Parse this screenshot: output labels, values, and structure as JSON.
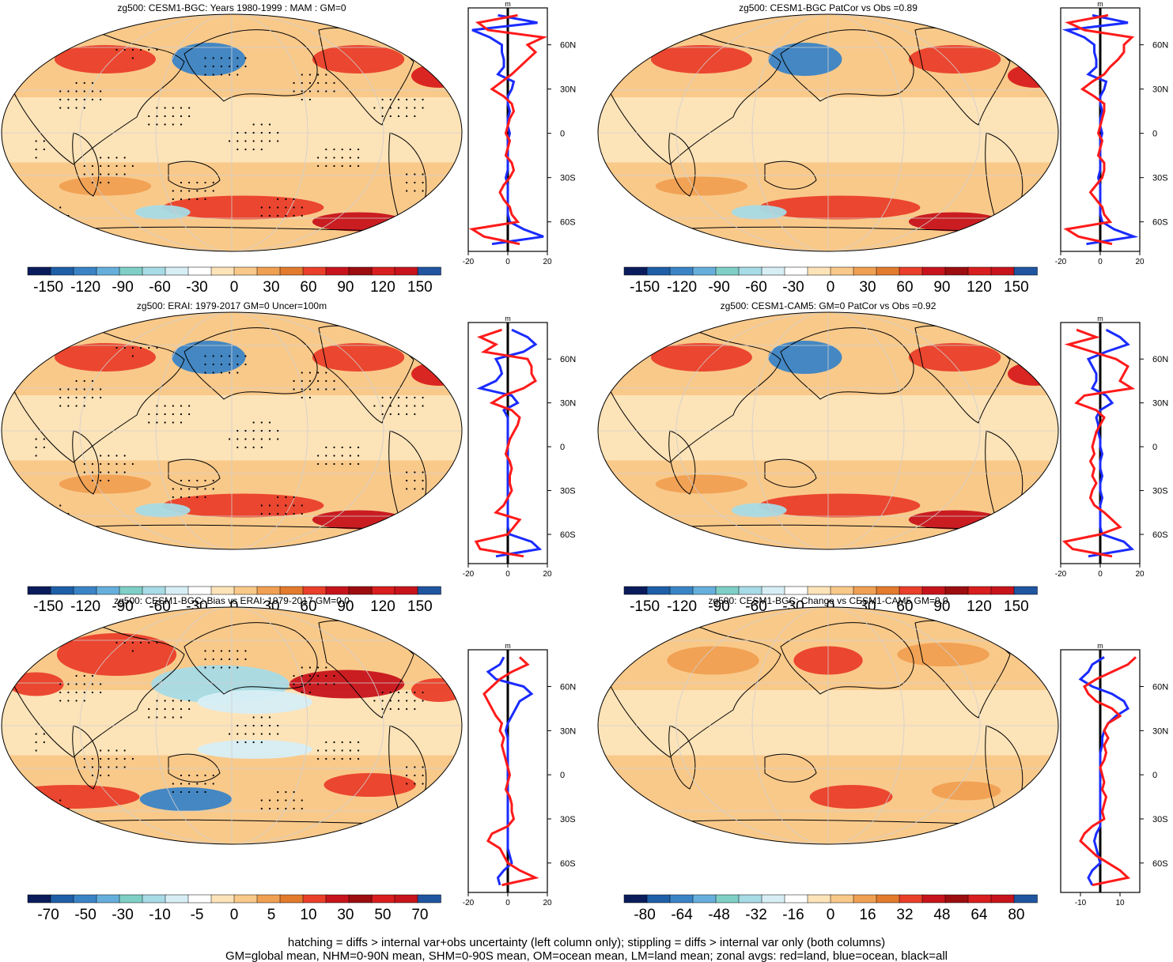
{
  "chart_data": [
    {
      "type": "heatmap",
      "title": "zg500: CESM1-BGC: Years 1980-1999 : MAM : GM=0",
      "colorbar_labels": [
        "-150",
        "-120",
        "-90",
        "-60",
        "-30",
        "0",
        "30",
        "60",
        "90",
        "120",
        "150"
      ],
      "profile": {
        "unit": "m",
        "xlim": [
          -20,
          20
        ],
        "x_ticks": [
          "-20",
          "0",
          "20"
        ],
        "lat_ticks": [
          "60N",
          "30N",
          "0",
          "30S",
          "60S"
        ],
        "lat": [
          80,
          75,
          70,
          65,
          60,
          55,
          50,
          45,
          40,
          35,
          30,
          25,
          20,
          15,
          10,
          5,
          0,
          -5,
          -10,
          -15,
          -20,
          -25,
          -30,
          -35,
          -40,
          -45,
          -50,
          -55,
          -60,
          -65,
          -70,
          -75
        ],
        "land": [
          5,
          -15,
          -10,
          18,
          10,
          14,
          10,
          6,
          2,
          -3,
          -8,
          -2,
          2,
          3,
          1,
          0,
          -1,
          1,
          0,
          -1,
          2,
          3,
          1,
          -2,
          -4,
          -2,
          1,
          2,
          5,
          -18,
          -12,
          6
        ],
        "ocean": [
          -5,
          15,
          -18,
          -9,
          -3,
          -3,
          -2,
          -2,
          -5,
          3,
          2,
          0,
          0,
          1,
          0,
          0,
          1,
          0,
          0,
          0,
          0,
          0,
          -1,
          0,
          0,
          0,
          0,
          0,
          1,
          8,
          18,
          -8
        ]
      },
      "hatched": true
    },
    {
      "type": "heatmap",
      "title": "zg500: CESM1-BGC PatCor vs Obs =0.89",
      "colorbar_labels": [
        "-150",
        "-120",
        "-90",
        "-60",
        "-30",
        "0",
        "30",
        "60",
        "90",
        "120",
        "150"
      ],
      "profile": {
        "unit": "m",
        "xlim": [
          -20,
          20
        ],
        "x_ticks": [
          "-20",
          "0",
          "20"
        ],
        "lat_ticks": [
          "60N",
          "30N",
          "0",
          "30S",
          "60S"
        ],
        "lat": [
          80,
          75,
          70,
          65,
          60,
          55,
          50,
          45,
          40,
          35,
          30,
          25,
          20,
          15,
          10,
          5,
          0,
          -5,
          -10,
          -15,
          -20,
          -25,
          -30,
          -35,
          -40,
          -45,
          -50,
          -55,
          -60,
          -65,
          -70,
          -75
        ],
        "land": [
          4,
          -16,
          -8,
          16,
          12,
          12,
          9,
          5,
          2,
          -4,
          -9,
          -3,
          2,
          2,
          1,
          0,
          -1,
          1,
          0,
          -1,
          2,
          2,
          1,
          -2,
          -5,
          -2,
          1,
          2,
          5,
          -17,
          -11,
          6
        ],
        "ocean": [
          -4,
          14,
          -17,
          -8,
          -3,
          -3,
          -2,
          -2,
          -6,
          3,
          2,
          0,
          0,
          1,
          0,
          0,
          1,
          0,
          0,
          0,
          0,
          0,
          -1,
          0,
          0,
          0,
          0,
          0,
          1,
          7,
          17,
          -7
        ]
      },
      "hatched": false
    },
    {
      "type": "heatmap",
      "title": "zg500: ERAI: 1979-2017 GM=0 Uncer=100m",
      "colorbar_labels": [
        "-150",
        "-120",
        "-90",
        "-60",
        "-30",
        "0",
        "30",
        "60",
        "90",
        "120",
        "150"
      ],
      "profile": {
        "unit": "m",
        "xlim": [
          -20,
          20
        ],
        "x_ticks": [
          "-20",
          "0",
          "20"
        ],
        "lat_ticks": [
          "60N",
          "30N",
          "0",
          "30S",
          "60S"
        ],
        "lat": [
          80,
          75,
          70,
          65,
          60,
          55,
          50,
          45,
          40,
          35,
          30,
          25,
          20,
          15,
          10,
          5,
          0,
          -5,
          -10,
          -15,
          -20,
          -25,
          -30,
          -35,
          -40,
          -45,
          -50,
          -55,
          -60,
          -65,
          -70,
          -75
        ],
        "land": [
          -3,
          -14,
          -6,
          -12,
          10,
          12,
          12,
          14,
          8,
          -2,
          -8,
          2,
          6,
          5,
          3,
          1,
          0,
          -1,
          1,
          2,
          1,
          1,
          2,
          0,
          -2,
          -6,
          6,
          3,
          0,
          -16,
          -14,
          8
        ],
        "ocean": [
          2,
          10,
          14,
          8,
          -6,
          -4,
          -3,
          -6,
          -14,
          2,
          5,
          -2,
          0,
          0,
          0,
          0,
          0,
          0,
          0,
          0,
          0,
          0,
          0,
          0,
          0,
          0,
          0,
          0,
          1,
          12,
          16,
          -6
        ]
      },
      "hatched": true
    },
    {
      "type": "heatmap",
      "title": "zg500: CESM1-CAM5: GM=0 PatCor vs Obs =0.92",
      "colorbar_labels": [
        "-150",
        "-120",
        "-90",
        "-60",
        "-30",
        "0",
        "30",
        "60",
        "90",
        "120",
        "150"
      ],
      "profile": {
        "unit": "m",
        "xlim": [
          -20,
          20
        ],
        "x_ticks": [
          "-20",
          "0",
          "20"
        ],
        "lat_ticks": [
          "60N",
          "30N",
          "0",
          "30S",
          "60S"
        ],
        "lat": [
          80,
          75,
          70,
          65,
          60,
          55,
          50,
          45,
          40,
          35,
          30,
          25,
          20,
          15,
          10,
          5,
          0,
          -5,
          -10,
          -15,
          -20,
          -25,
          -30,
          -35,
          -40,
          -45,
          -50,
          -55,
          -60,
          -65,
          -70,
          -75
        ],
        "land": [
          -12,
          -2,
          -16,
          -4,
          8,
          14,
          12,
          10,
          16,
          -8,
          -12,
          -2,
          2,
          0,
          -2,
          -3,
          -4,
          -3,
          -5,
          -3,
          -4,
          -2,
          -4,
          -5,
          -3,
          2,
          6,
          10,
          0,
          -18,
          -14,
          6
        ],
        "ocean": [
          3,
          10,
          14,
          3,
          -6,
          -4,
          -2,
          -2,
          -4,
          3,
          6,
          0,
          -2,
          -1,
          -1,
          0,
          0,
          1,
          0,
          0,
          1,
          0,
          0,
          1,
          0,
          0,
          0,
          0,
          1,
          12,
          16,
          -6
        ]
      },
      "hatched": false
    },
    {
      "type": "heatmap",
      "title": "zg500: CESM1-BGC: Bias vs ERAI: 1979-2017 GM=0.0",
      "colorbar_labels": [
        "-70",
        "-50",
        "-30",
        "-10",
        "-5",
        "0",
        "5",
        "10",
        "30",
        "50",
        "70"
      ],
      "profile": {
        "unit": "m",
        "xlim": [
          -20,
          20
        ],
        "x_ticks": [
          "-20",
          "0",
          "20"
        ],
        "lat_ticks": [
          "60N",
          "30N",
          "0",
          "30S",
          "60S"
        ],
        "lat": [
          80,
          75,
          70,
          65,
          60,
          55,
          50,
          45,
          40,
          35,
          30,
          25,
          20,
          15,
          10,
          5,
          0,
          -5,
          -10,
          -15,
          -20,
          -25,
          -30,
          -35,
          -40,
          -45,
          -50,
          -55,
          -60,
          -65,
          -70,
          -75
        ],
        "land": [
          6,
          10,
          2,
          -4,
          -8,
          -12,
          -10,
          -8,
          -6,
          -3,
          -4,
          -2,
          -3,
          -2,
          -1,
          0,
          1,
          0,
          -1,
          1,
          2,
          2,
          3,
          0,
          -8,
          -10,
          -4,
          -2,
          0,
          6,
          14,
          -3
        ],
        "ocean": [
          -2,
          -4,
          -10,
          -6,
          8,
          12,
          6,
          4,
          2,
          0,
          -1,
          0,
          0,
          0,
          0,
          0,
          0,
          0,
          0,
          0,
          0,
          0,
          0,
          0,
          0,
          0,
          0,
          1,
          2,
          -2,
          -5,
          -4
        ]
      },
      "hatched": true
    },
    {
      "type": "heatmap",
      "title": "zg500: CESM1-BGC: Change vs CESM1-CAM5 GM=0.0",
      "colorbar_labels": [
        "-80",
        "-64",
        "-48",
        "-32",
        "-16",
        "0",
        "16",
        "32",
        "48",
        "64",
        "80"
      ],
      "profile": {
        "unit": "m",
        "xlim": [
          -20,
          20
        ],
        "x_ticks": [
          "-10",
          "10"
        ],
        "lat_ticks": [
          "60N",
          "30N",
          "0",
          "30S",
          "60S"
        ],
        "lat": [
          80,
          75,
          70,
          65,
          60,
          55,
          50,
          45,
          40,
          35,
          30,
          25,
          20,
          15,
          10,
          5,
          0,
          -5,
          -10,
          -15,
          -20,
          -25,
          -30,
          -35,
          -40,
          -45,
          -50,
          -55,
          -60,
          -65,
          -70,
          -75
        ],
        "land": [
          18,
          14,
          6,
          -2,
          -8,
          -6,
          -2,
          6,
          10,
          4,
          2,
          4,
          2,
          3,
          2,
          0,
          1,
          2,
          1,
          3,
          2,
          1,
          2,
          -4,
          -8,
          -10,
          -6,
          -2,
          4,
          10,
          14,
          -4
        ],
        "ocean": [
          2,
          -4,
          -6,
          -10,
          -4,
          6,
          12,
          14,
          8,
          4,
          2,
          1,
          1,
          0,
          0,
          0,
          0,
          0,
          0,
          0,
          0,
          0,
          0,
          0,
          -2,
          -3,
          -2,
          -1,
          0,
          -4,
          -6,
          -4
        ]
      },
      "hatched": false
    }
  ],
  "footer": {
    "line1": "hatching = diffs > internal var+obs uncertainty (left column only); stippling = diffs > internal var only (both columns)",
    "line2": "GM=global mean, NHM=0-90N mean, SHM=0-90S mean, OM=ocean mean, LM=land mean; zonal avgs: red=land, blue=ocean, black=all"
  },
  "colors": {
    "scale": [
      "#0b1c5c",
      "#1f5fa8",
      "#3a84c6",
      "#66afdc",
      "#7fcfc6",
      "#a7dbe6",
      "#d7eef5",
      "#f7f7f7",
      "#fde3b8",
      "#f9c98a",
      "#f0a052",
      "#e37b2d",
      "#ea3f2a",
      "#c7141c",
      "#9c0d0f",
      "#d81e1e",
      "#b3151b",
      "#2055a0"
    ],
    "land_line": "#ff1a1a",
    "ocean_line": "#1a2cff",
    "all_line": "#000000"
  }
}
